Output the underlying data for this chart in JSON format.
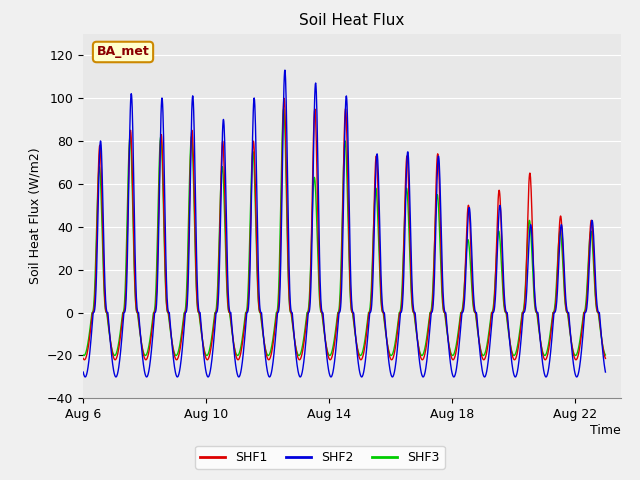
{
  "title": "Soil Heat Flux",
  "ylabel": "Soil Heat Flux (W/m2)",
  "xlabel": "Time",
  "xlim_days": [
    6,
    23.5
  ],
  "ylim": [
    -40,
    130
  ],
  "yticks": [
    -40,
    -20,
    0,
    20,
    40,
    60,
    80,
    100,
    120
  ],
  "xtick_labels": [
    "Aug 6",
    "Aug 10",
    "Aug 14",
    "Aug 18",
    "Aug 22"
  ],
  "xtick_positions": [
    6,
    10,
    14,
    18,
    22
  ],
  "colors": {
    "SHF1": "#dd0000",
    "SHF2": "#0000dd",
    "SHF3": "#00cc00"
  },
  "fig_bg_color": "#f0f0f0",
  "plot_bg_color": "#e8e8e8",
  "annotation_text": "BA_met",
  "annotation_bg": "#ffffcc",
  "annotation_border": "#cc8800",
  "peak_shf1": [
    78,
    85,
    83,
    85,
    80,
    80,
    100,
    95,
    95,
    73,
    73,
    74,
    50,
    57,
    65,
    45,
    43
  ],
  "peak_shf2": [
    80,
    102,
    100,
    101,
    90,
    100,
    113,
    107,
    101,
    74,
    75,
    73,
    49,
    50,
    41,
    41,
    43
  ],
  "peak_shf3": [
    68,
    82,
    82,
    82,
    68,
    75,
    95,
    63,
    80,
    58,
    58,
    55,
    34,
    38,
    43,
    38,
    38
  ],
  "night_shf1": -22,
  "night_shf2": -30,
  "night_shf3": -20
}
